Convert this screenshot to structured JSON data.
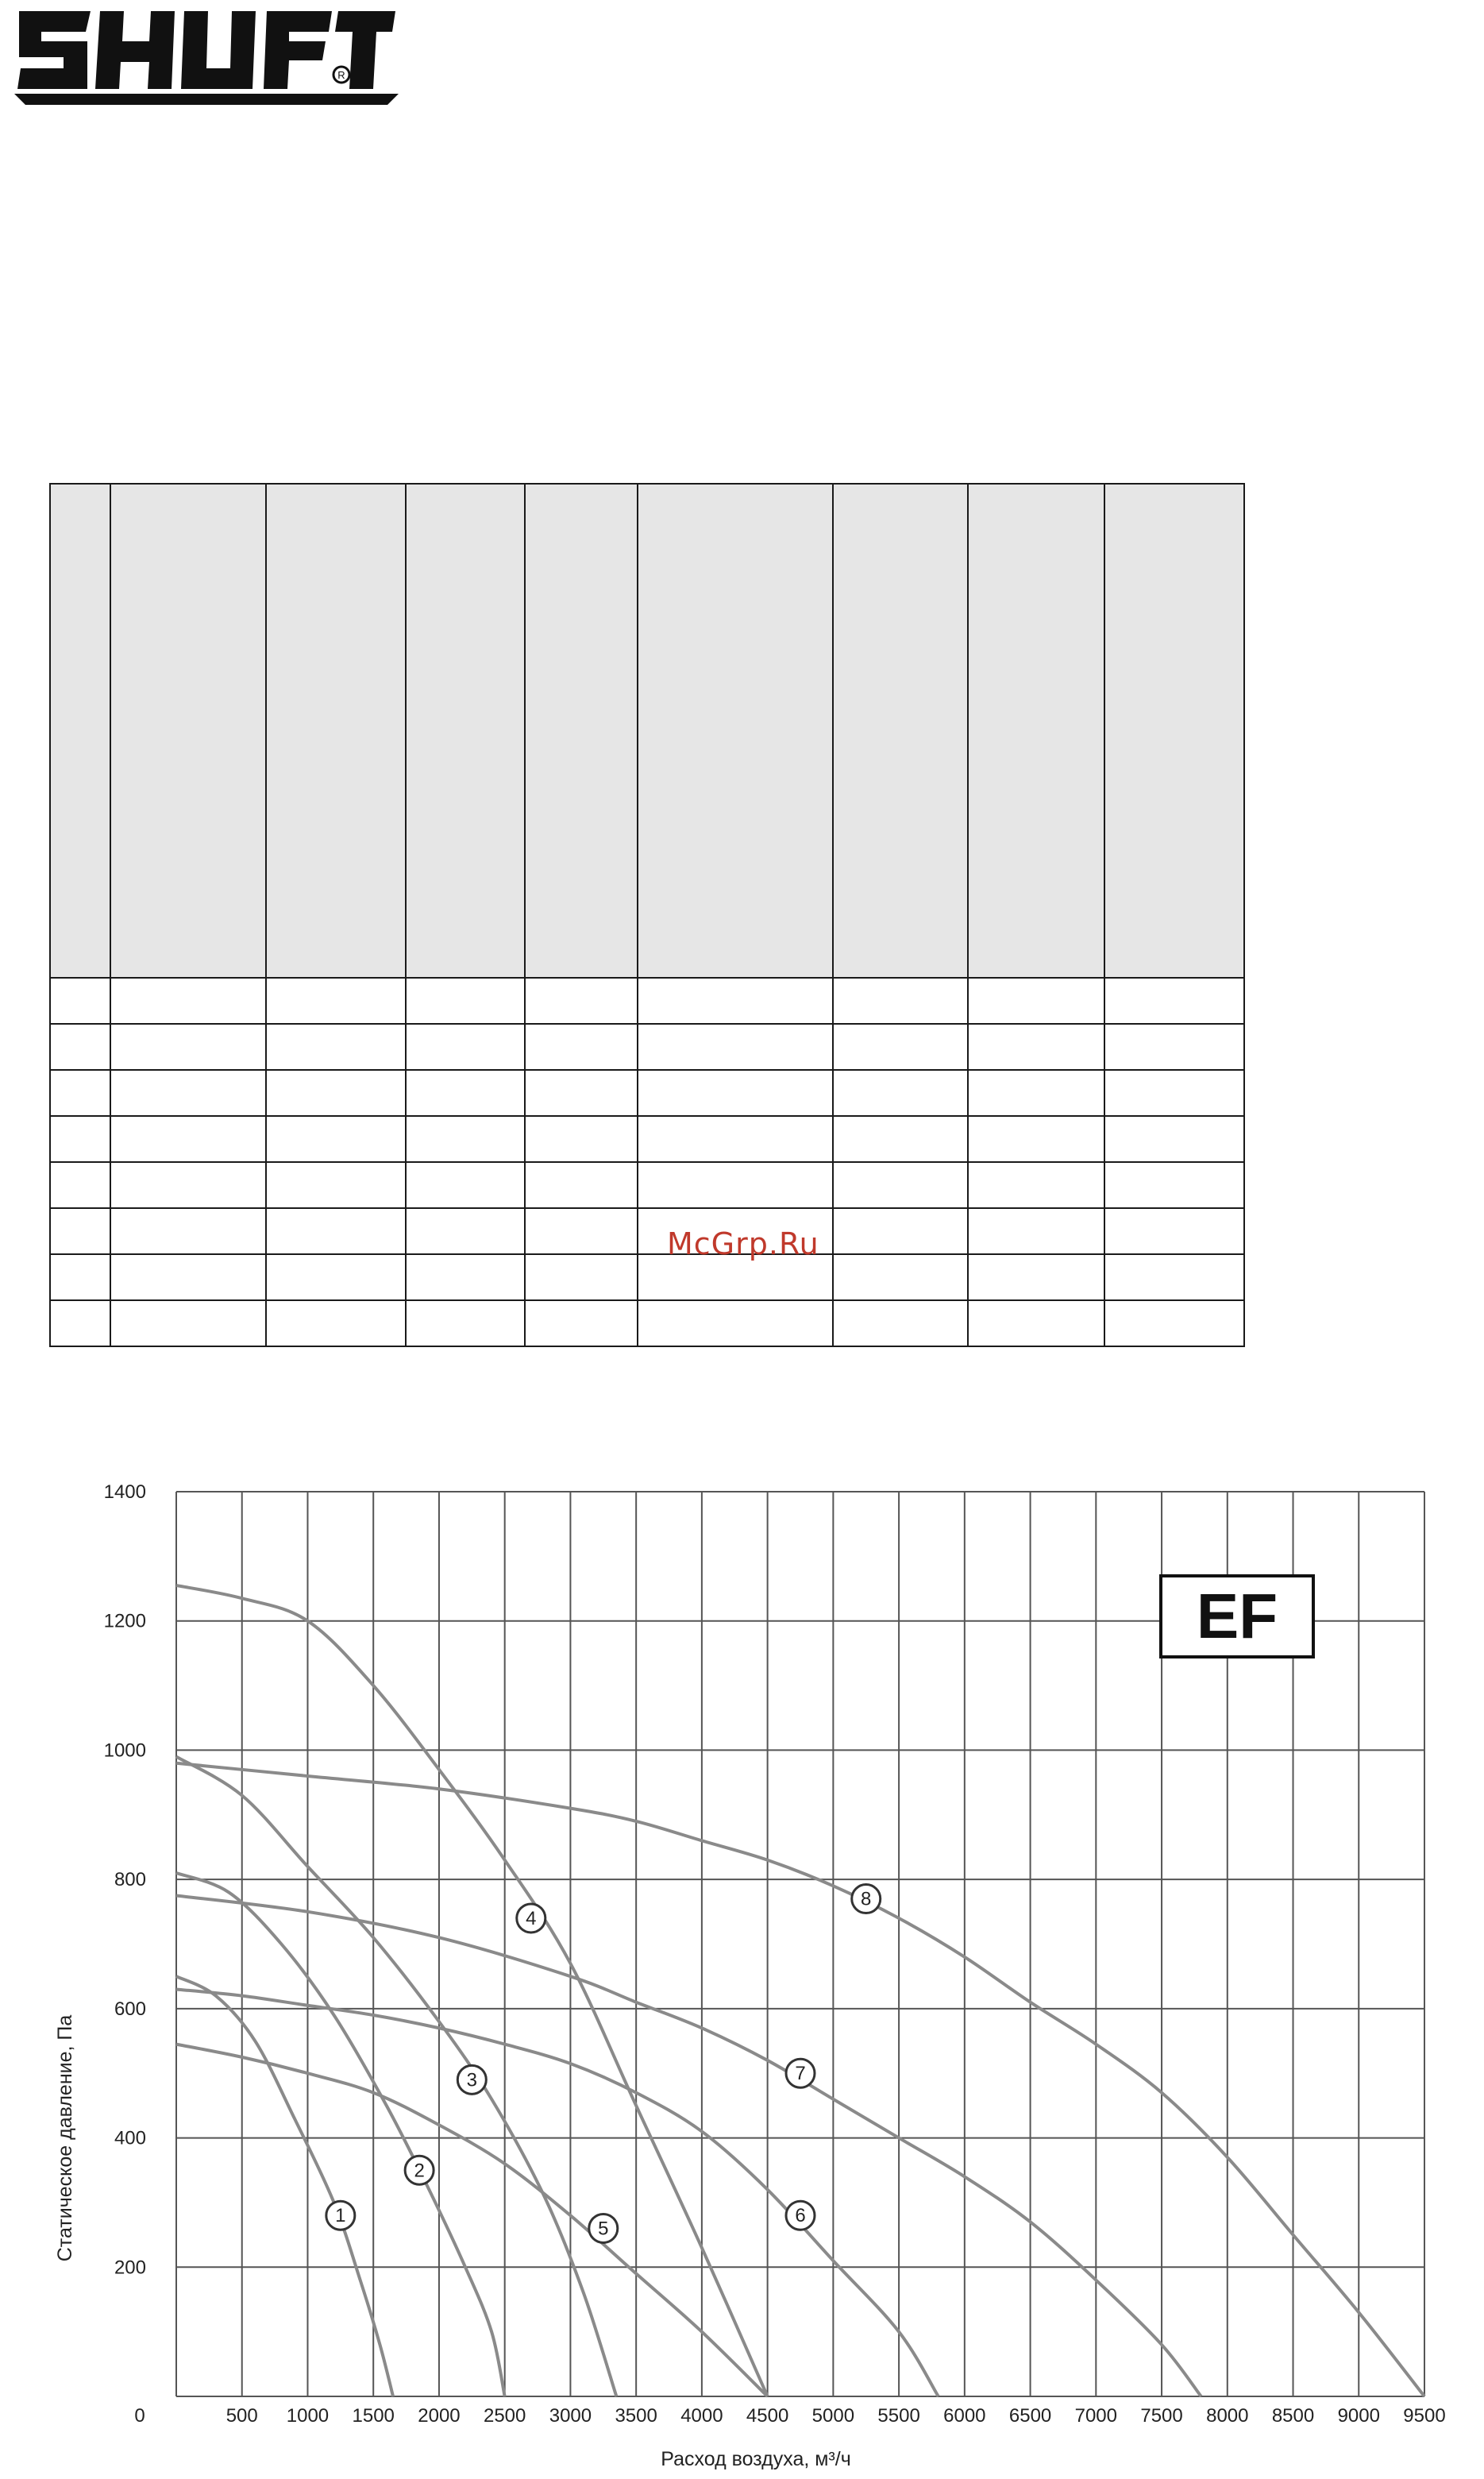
{
  "logo": {
    "text": "SHUFT",
    "mark": "R"
  },
  "table": {
    "columns": 9,
    "data_rows": 8
  },
  "watermark": "McGrp.Ru",
  "chart_data": {
    "type": "line",
    "badge": "EF",
    "xlabel": "Расход воздуха, м³/ч",
    "ylabel": "Статическое давление, Па",
    "xlim": [
      0,
      9500
    ],
    "ylim": [
      0,
      1400
    ],
    "x_ticks": [
      0,
      500,
      1000,
      1500,
      2000,
      2500,
      3000,
      3500,
      4000,
      4500,
      5000,
      5500,
      6000,
      6500,
      7000,
      7500,
      8000,
      8500,
      9000,
      9500
    ],
    "y_ticks": [
      0,
      200,
      400,
      600,
      800,
      1000,
      1200,
      1400
    ],
    "grid": true,
    "series": [
      {
        "label": "1",
        "marker": [
          1250,
          280
        ],
        "points": [
          [
            0,
            650
          ],
          [
            300,
            620
          ],
          [
            600,
            550
          ],
          [
            900,
            430
          ],
          [
            1200,
            300
          ],
          [
            1400,
            180
          ],
          [
            1550,
            80
          ],
          [
            1650,
            0
          ]
        ]
      },
      {
        "label": "2",
        "marker": [
          1850,
          350
        ],
        "points": [
          [
            0,
            810
          ],
          [
            400,
            780
          ],
          [
            800,
            700
          ],
          [
            1200,
            590
          ],
          [
            1600,
            450
          ],
          [
            1900,
            330
          ],
          [
            2200,
            200
          ],
          [
            2400,
            100
          ],
          [
            2500,
            0
          ]
        ]
      },
      {
        "label": "3",
        "marker": [
          2250,
          490
        ],
        "points": [
          [
            0,
            990
          ],
          [
            500,
            930
          ],
          [
            1000,
            820
          ],
          [
            1500,
            710
          ],
          [
            2000,
            580
          ],
          [
            2400,
            460
          ],
          [
            2800,
            310
          ],
          [
            3100,
            160
          ],
          [
            3350,
            0
          ]
        ]
      },
      {
        "label": "4",
        "marker": [
          2700,
          740
        ],
        "points": [
          [
            0,
            1255
          ],
          [
            500,
            1235
          ],
          [
            1000,
            1200
          ],
          [
            1500,
            1100
          ],
          [
            2000,
            970
          ],
          [
            2500,
            830
          ],
          [
            3000,
            670
          ],
          [
            3500,
            450
          ],
          [
            4000,
            230
          ],
          [
            4500,
            0
          ]
        ]
      },
      {
        "label": "5",
        "marker": [
          3250,
          260
        ],
        "points": [
          [
            0,
            545
          ],
          [
            500,
            525
          ],
          [
            1000,
            500
          ],
          [
            1500,
            470
          ],
          [
            2000,
            420
          ],
          [
            2500,
            360
          ],
          [
            3000,
            280
          ],
          [
            3500,
            190
          ],
          [
            4000,
            100
          ],
          [
            4500,
            0
          ]
        ]
      },
      {
        "label": "6",
        "marker": [
          4750,
          280
        ],
        "points": [
          [
            0,
            630
          ],
          [
            500,
            620
          ],
          [
            1000,
            605
          ],
          [
            1500,
            590
          ],
          [
            2000,
            570
          ],
          [
            2500,
            545
          ],
          [
            3000,
            515
          ],
          [
            3500,
            470
          ],
          [
            4000,
            410
          ],
          [
            4500,
            320
          ],
          [
            5000,
            210
          ],
          [
            5500,
            100
          ],
          [
            5800,
            0
          ]
        ]
      },
      {
        "label": "7",
        "marker": [
          4750,
          500
        ],
        "points": [
          [
            0,
            775
          ],
          [
            1000,
            750
          ],
          [
            2000,
            710
          ],
          [
            3000,
            650
          ],
          [
            3500,
            610
          ],
          [
            4000,
            570
          ],
          [
            4500,
            520
          ],
          [
            5000,
            460
          ],
          [
            5500,
            400
          ],
          [
            6000,
            340
          ],
          [
            6500,
            270
          ],
          [
            7000,
            180
          ],
          [
            7500,
            80
          ],
          [
            7800,
            0
          ]
        ]
      },
      {
        "label": "8",
        "marker": [
          5250,
          770
        ],
        "points": [
          [
            0,
            980
          ],
          [
            1000,
            960
          ],
          [
            2000,
            940
          ],
          [
            3000,
            910
          ],
          [
            3500,
            890
          ],
          [
            4000,
            860
          ],
          [
            4500,
            830
          ],
          [
            5000,
            790
          ],
          [
            5500,
            740
          ],
          [
            6000,
            680
          ],
          [
            6500,
            610
          ],
          [
            7000,
            545
          ],
          [
            7500,
            470
          ],
          [
            8000,
            370
          ],
          [
            8500,
            250
          ],
          [
            9000,
            130
          ],
          [
            9500,
            0
          ]
        ]
      }
    ]
  }
}
